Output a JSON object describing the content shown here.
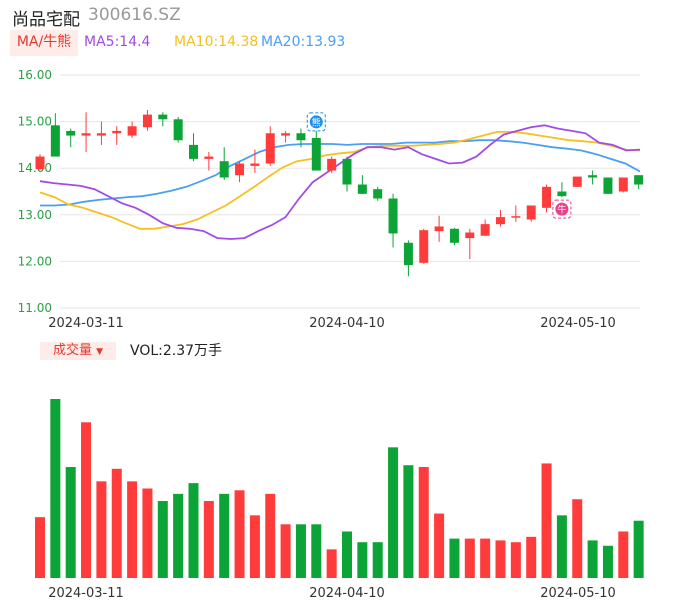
{
  "header": {
    "name": "尚品宅配",
    "code": "300616.SZ"
  },
  "legend": {
    "ma_tab": "MA/牛熊",
    "ma5": "MA5:14.4",
    "ma10": "MA10:14.38",
    "ma20": "MA20:13.93"
  },
  "volume": {
    "tab": "成交量",
    "text": "VOL:2.37万手"
  },
  "colors": {
    "up": "#ff3b3b",
    "down": "#0ca337",
    "ma5": "#a24be6",
    "ma10": "#f6c021",
    "ma20": "#4a9ff0",
    "grid": "#e6e6e6"
  },
  "chart_data": {
    "type": "candlestick",
    "y_ticks": [
      "16.00",
      "15.00",
      "14.00",
      "13.00",
      "12.00",
      "11.00"
    ],
    "ylim": [
      11,
      16
    ],
    "x_labels": [
      "2024-03-11",
      "2024-04-10",
      "2024-05-10"
    ],
    "markers": [
      {
        "label": "熊",
        "index": 18
      },
      {
        "label": "牛",
        "index": 34
      }
    ],
    "candles": [
      {
        "o": 13.98,
        "h": 14.3,
        "l": 13.96,
        "c": 14.25
      },
      {
        "o": 14.92,
        "h": 15.18,
        "l": 14.25,
        "c": 14.25
      },
      {
        "o": 14.8,
        "h": 14.85,
        "l": 14.45,
        "c": 14.7
      },
      {
        "o": 14.7,
        "h": 15.2,
        "l": 14.35,
        "c": 14.75
      },
      {
        "o": 14.7,
        "h": 15.0,
        "l": 14.5,
        "c": 14.75
      },
      {
        "o": 14.75,
        "h": 14.9,
        "l": 14.5,
        "c": 14.8
      },
      {
        "o": 14.7,
        "h": 15.0,
        "l": 14.65,
        "c": 14.9
      },
      {
        "o": 14.88,
        "h": 15.25,
        "l": 14.8,
        "c": 15.15
      },
      {
        "o": 15.15,
        "h": 15.2,
        "l": 14.9,
        "c": 15.05
      },
      {
        "o": 15.05,
        "h": 15.1,
        "l": 14.55,
        "c": 14.6
      },
      {
        "o": 14.5,
        "h": 14.75,
        "l": 14.15,
        "c": 14.2
      },
      {
        "o": 14.2,
        "h": 14.35,
        "l": 13.95,
        "c": 14.25
      },
      {
        "o": 14.15,
        "h": 14.45,
        "l": 13.75,
        "c": 13.8
      },
      {
        "o": 13.85,
        "h": 14.15,
        "l": 13.7,
        "c": 14.1
      },
      {
        "o": 14.05,
        "h": 14.4,
        "l": 13.9,
        "c": 14.1
      },
      {
        "o": 14.1,
        "h": 14.9,
        "l": 14.05,
        "c": 14.75
      },
      {
        "o": 14.7,
        "h": 14.8,
        "l": 14.55,
        "c": 14.75
      },
      {
        "o": 14.75,
        "h": 14.85,
        "l": 14.45,
        "c": 14.6
      },
      {
        "o": 14.65,
        "h": 14.8,
        "l": 13.95,
        "c": 13.95
      },
      {
        "o": 13.95,
        "h": 14.25,
        "l": 13.9,
        "c": 14.2
      },
      {
        "o": 14.2,
        "h": 14.25,
        "l": 13.5,
        "c": 13.65
      },
      {
        "o": 13.65,
        "h": 13.85,
        "l": 13.45,
        "c": 13.45
      },
      {
        "o": 13.55,
        "h": 13.6,
        "l": 13.3,
        "c": 13.35
      },
      {
        "o": 13.35,
        "h": 13.45,
        "l": 12.3,
        "c": 12.6
      },
      {
        "o": 12.4,
        "h": 12.45,
        "l": 11.68,
        "c": 11.92
      },
      {
        "o": 11.97,
        "h": 12.7,
        "l": 11.95,
        "c": 12.67
      },
      {
        "o": 12.65,
        "h": 12.98,
        "l": 12.42,
        "c": 12.75
      },
      {
        "o": 12.7,
        "h": 12.72,
        "l": 12.35,
        "c": 12.4
      },
      {
        "o": 12.5,
        "h": 12.7,
        "l": 12.05,
        "c": 12.62
      },
      {
        "o": 12.55,
        "h": 12.9,
        "l": 12.55,
        "c": 12.8
      },
      {
        "o": 12.8,
        "h": 13.1,
        "l": 12.75,
        "c": 12.95
      },
      {
        "o": 12.95,
        "h": 13.2,
        "l": 12.85,
        "c": 12.97
      },
      {
        "o": 12.9,
        "h": 13.2,
        "l": 12.85,
        "c": 13.2
      },
      {
        "o": 13.15,
        "h": 13.65,
        "l": 13.05,
        "c": 13.6
      },
      {
        "o": 13.5,
        "h": 13.7,
        "l": 13.38,
        "c": 13.4
      },
      {
        "o": 13.6,
        "h": 13.8,
        "l": 13.6,
        "c": 13.82
      },
      {
        "o": 13.85,
        "h": 13.95,
        "l": 13.65,
        "c": 13.8
      },
      {
        "o": 13.8,
        "h": 13.8,
        "l": 13.45,
        "c": 13.45
      },
      {
        "o": 13.5,
        "h": 13.8,
        "l": 13.48,
        "c": 13.8
      },
      {
        "o": 13.85,
        "h": 13.85,
        "l": 13.55,
        "c": 13.65
      }
    ],
    "ma5": [
      13.72,
      13.68,
      13.65,
      13.62,
      13.55,
      13.4,
      13.25,
      13.15,
      13.0,
      12.82,
      12.72,
      12.7,
      12.65,
      12.5,
      12.48,
      12.5,
      12.65,
      12.78,
      12.95,
      13.35,
      13.7,
      13.9,
      14.1,
      14.3,
      14.45,
      14.45,
      14.4,
      14.45,
      14.3,
      14.2,
      14.1,
      14.12,
      14.25,
      14.5,
      14.72,
      14.8,
      14.88,
      14.92,
      14.85,
      14.8,
      14.75,
      14.55,
      14.5,
      14.38,
      14.4
    ],
    "ma10": [
      13.48,
      13.38,
      13.22,
      13.15,
      13.05,
      12.95,
      12.82,
      12.7,
      12.7,
      12.75,
      12.8,
      12.9,
      13.05,
      13.2,
      13.4,
      13.6,
      13.82,
      14.02,
      14.15,
      14.2,
      14.28,
      14.32,
      14.35,
      14.45,
      14.48,
      14.48,
      14.48,
      14.5,
      14.52,
      14.55,
      14.62,
      14.7,
      14.78,
      14.78,
      14.75,
      14.7,
      14.65,
      14.6,
      14.58,
      14.55,
      14.48,
      14.4,
      14.38
    ],
    "ma20": [
      13.2,
      13.2,
      13.22,
      13.28,
      13.32,
      13.35,
      13.38,
      13.4,
      13.45,
      13.52,
      13.6,
      13.72,
      13.85,
      14.05,
      14.2,
      14.35,
      14.45,
      14.5,
      14.52,
      14.52,
      14.52,
      14.5,
      14.52,
      14.52,
      14.52,
      14.55,
      14.55,
      14.55,
      14.58,
      14.58,
      14.6,
      14.6,
      14.58,
      14.55,
      14.5,
      14.45,
      14.42,
      14.38,
      14.3,
      14.2,
      14.1,
      13.93
    ],
    "volume": [
      0.34,
      1.0,
      0.62,
      0.87,
      0.54,
      0.61,
      0.54,
      0.5,
      0.43,
      0.47,
      0.53,
      0.43,
      0.47,
      0.49,
      0.35,
      0.47,
      0.3,
      0.3,
      0.3,
      0.16,
      0.26,
      0.2,
      0.2,
      0.73,
      0.63,
      0.62,
      0.36,
      0.22,
      0.22,
      0.22,
      0.21,
      0.2,
      0.23,
      0.64,
      0.35,
      0.44,
      0.21,
      0.18,
      0.26,
      0.32
    ]
  }
}
